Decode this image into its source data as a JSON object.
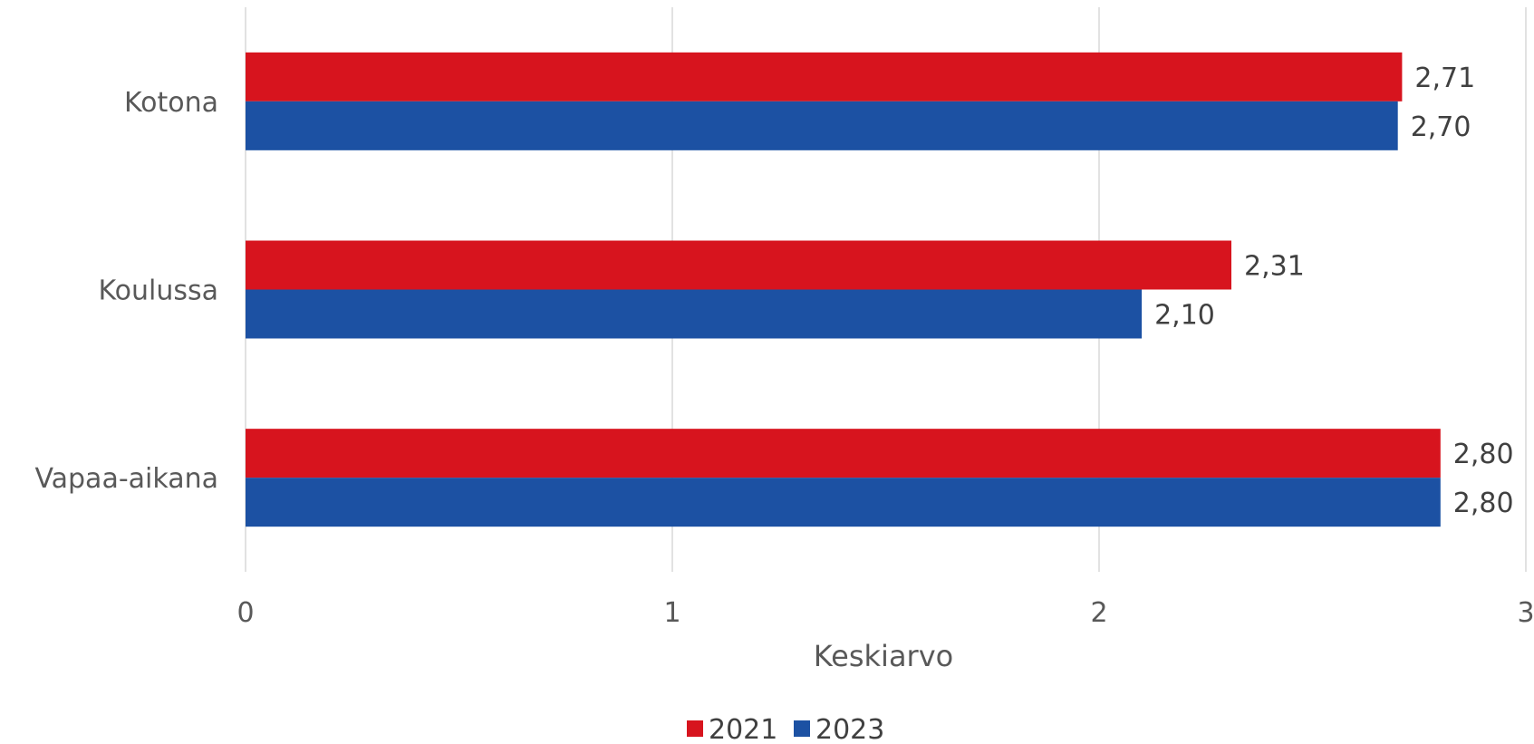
{
  "chart_data": {
    "type": "bar",
    "orientation": "horizontal",
    "categories": [
      "Kotona",
      "Koulussa",
      "Vapaa-aikana"
    ],
    "series": [
      {
        "name": "2021",
        "values": [
          2.71,
          2.31,
          2.8
        ],
        "labels": [
          "2,71",
          "2,31",
          "2,80"
        ],
        "color": "#D7141E"
      },
      {
        "name": "2023",
        "values": [
          2.7,
          2.1,
          2.8
        ],
        "labels": [
          "2,70",
          "2,10",
          "2,80"
        ],
        "color": "#1C51A3"
      }
    ],
    "xlabel": "Keskiarvo",
    "ylabel": "",
    "xlim": [
      0,
      3
    ],
    "xticks": [
      "0",
      "1",
      "2",
      "3"
    ],
    "grid": "vertical",
    "legend_position": "bottom",
    "gridline_color": "#d9d9d9"
  }
}
